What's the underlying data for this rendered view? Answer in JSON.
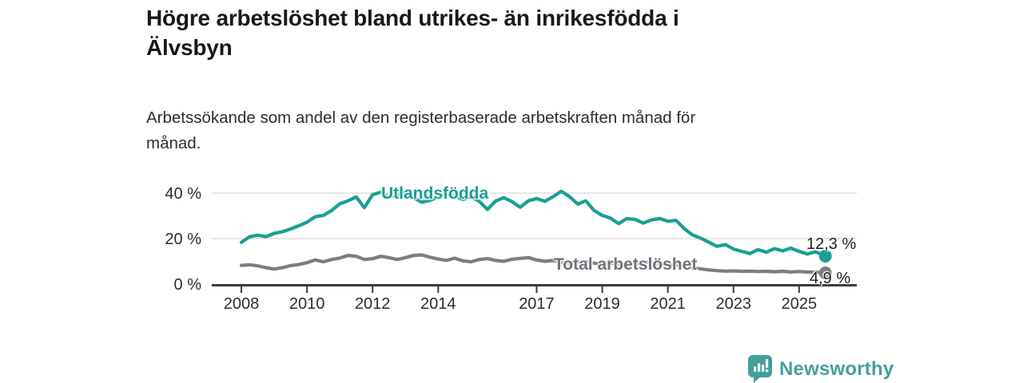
{
  "header": {
    "title": "Högre arbetslöshet bland utrikes- än inrikesfödda i\nÄlvsbyn",
    "subtitle": "Arbetssökande som andel av den registerbaserade arbetskraften månad för\nmånad."
  },
  "chart_data": {
    "type": "line",
    "title": "Högre arbetslöshet bland utrikes- än inrikesfödda i Älvsbyn",
    "subtitle": "Arbetssökande som andel av den registerbaserade arbetskraften månad för månad.",
    "unit": "%",
    "grid": "horizontal",
    "legend_position": "inline-labels",
    "xlim": [
      2008,
      2026
    ],
    "ylim": [
      0,
      44
    ],
    "yticks": [
      {
        "value": 0,
        "label": "0 %"
      },
      {
        "value": 20,
        "label": "20 %"
      },
      {
        "value": 40,
        "label": "40 %"
      }
    ],
    "xticks": [
      {
        "value": 2008,
        "label": "2008"
      },
      {
        "value": 2010,
        "label": "2010"
      },
      {
        "value": 2012,
        "label": "2012"
      },
      {
        "value": 2014,
        "label": "2014"
      },
      {
        "value": 2017,
        "label": "2017"
      },
      {
        "value": 2019,
        "label": "2019"
      },
      {
        "value": 2021,
        "label": "2021"
      },
      {
        "value": 2023,
        "label": "2023"
      },
      {
        "value": 2025,
        "label": "2025"
      }
    ],
    "series": [
      {
        "name": "Utlandsfödda",
        "color": "#18a093",
        "end_label": "12,3 %",
        "end_value": 12.3,
        "points": [
          [
            2008.0,
            18.3
          ],
          [
            2008.25,
            20.8
          ],
          [
            2008.5,
            21.5
          ],
          [
            2008.75,
            20.8
          ],
          [
            2009.0,
            22.3
          ],
          [
            2009.25,
            23.0
          ],
          [
            2009.5,
            24.2
          ],
          [
            2009.75,
            25.6
          ],
          [
            2010.0,
            27.2
          ],
          [
            2010.25,
            29.6
          ],
          [
            2010.5,
            30.2
          ],
          [
            2010.75,
            32.3
          ],
          [
            2011.0,
            35.3
          ],
          [
            2011.25,
            36.6
          ],
          [
            2011.5,
            38.3
          ],
          [
            2011.75,
            33.6
          ],
          [
            2012.0,
            39.3
          ],
          [
            2012.25,
            40.4
          ],
          [
            2012.5,
            38.2
          ],
          [
            2012.75,
            39.2
          ],
          [
            2013.0,
            40.3
          ],
          [
            2013.25,
            38.0
          ],
          [
            2013.5,
            36.0
          ],
          [
            2013.75,
            36.8
          ],
          [
            2014.0,
            38.2
          ],
          [
            2014.25,
            39.6
          ],
          [
            2014.5,
            38.6
          ],
          [
            2014.75,
            37.2
          ],
          [
            2015.0,
            38.3
          ],
          [
            2015.25,
            36.4
          ],
          [
            2015.5,
            32.8
          ],
          [
            2015.75,
            36.5
          ],
          [
            2016.0,
            38.0
          ],
          [
            2016.25,
            36.2
          ],
          [
            2016.5,
            33.8
          ],
          [
            2016.75,
            36.6
          ],
          [
            2017.0,
            37.6
          ],
          [
            2017.25,
            36.4
          ],
          [
            2017.5,
            38.4
          ],
          [
            2017.75,
            40.8
          ],
          [
            2018.0,
            38.5
          ],
          [
            2018.25,
            35.2
          ],
          [
            2018.5,
            36.6
          ],
          [
            2018.75,
            32.4
          ],
          [
            2019.0,
            30.2
          ],
          [
            2019.25,
            29.0
          ],
          [
            2019.5,
            26.6
          ],
          [
            2019.75,
            28.8
          ],
          [
            2020.0,
            28.4
          ],
          [
            2020.25,
            26.8
          ],
          [
            2020.5,
            28.2
          ],
          [
            2020.75,
            28.8
          ],
          [
            2021.0,
            27.6
          ],
          [
            2021.25,
            28.0
          ],
          [
            2021.5,
            24.4
          ],
          [
            2021.75,
            21.6
          ],
          [
            2022.0,
            20.2
          ],
          [
            2022.25,
            18.4
          ],
          [
            2022.5,
            16.6
          ],
          [
            2022.75,
            17.4
          ],
          [
            2023.0,
            15.4
          ],
          [
            2023.25,
            14.4
          ],
          [
            2023.5,
            13.4
          ],
          [
            2023.75,
            15.2
          ],
          [
            2024.0,
            14.0
          ],
          [
            2024.25,
            15.6
          ],
          [
            2024.5,
            14.6
          ],
          [
            2024.75,
            15.8
          ],
          [
            2025.0,
            14.4
          ],
          [
            2025.25,
            13.2
          ],
          [
            2025.5,
            14.2
          ],
          [
            2025.8,
            12.3
          ]
        ]
      },
      {
        "name": "Total arbetslöshet",
        "color": "#7c7c81",
        "end_label": "4,9 %",
        "end_value": 4.9,
        "points": [
          [
            2008.0,
            8.2
          ],
          [
            2008.25,
            8.5
          ],
          [
            2008.5,
            8.0
          ],
          [
            2008.75,
            7.2
          ],
          [
            2009.0,
            6.6
          ],
          [
            2009.25,
            7.2
          ],
          [
            2009.5,
            8.1
          ],
          [
            2009.75,
            8.6
          ],
          [
            2010.0,
            9.4
          ],
          [
            2010.25,
            10.6
          ],
          [
            2010.5,
            9.8
          ],
          [
            2010.75,
            10.8
          ],
          [
            2011.0,
            11.4
          ],
          [
            2011.25,
            12.6
          ],
          [
            2011.5,
            12.2
          ],
          [
            2011.75,
            10.8
          ],
          [
            2012.0,
            11.2
          ],
          [
            2012.25,
            12.2
          ],
          [
            2012.5,
            11.6
          ],
          [
            2012.75,
            10.8
          ],
          [
            2013.0,
            11.6
          ],
          [
            2013.25,
            12.6
          ],
          [
            2013.5,
            12.8
          ],
          [
            2013.75,
            11.8
          ],
          [
            2014.0,
            11.0
          ],
          [
            2014.25,
            10.4
          ],
          [
            2014.5,
            11.4
          ],
          [
            2014.75,
            10.2
          ],
          [
            2015.0,
            9.8
          ],
          [
            2015.25,
            10.8
          ],
          [
            2015.5,
            11.2
          ],
          [
            2015.75,
            10.4
          ],
          [
            2016.0,
            10.0
          ],
          [
            2016.25,
            10.9
          ],
          [
            2016.5,
            11.3
          ],
          [
            2016.75,
            11.6
          ],
          [
            2017.0,
            10.6
          ],
          [
            2017.25,
            10.0
          ],
          [
            2017.5,
            10.4
          ],
          [
            2017.75,
            9.6
          ],
          [
            2018.0,
            9.2
          ],
          [
            2018.25,
            9.7
          ],
          [
            2018.5,
            9.9
          ],
          [
            2018.75,
            9.2
          ],
          [
            2019.0,
            8.8
          ],
          [
            2019.25,
            9.1
          ],
          [
            2019.5,
            8.9
          ],
          [
            2019.75,
            8.6
          ],
          [
            2020.0,
            8.8
          ],
          [
            2020.25,
            9.6
          ],
          [
            2020.5,
            9.4
          ],
          [
            2020.75,
            8.9
          ],
          [
            2021.0,
            8.6
          ],
          [
            2021.25,
            8.3
          ],
          [
            2021.5,
            7.8
          ],
          [
            2021.75,
            7.2
          ],
          [
            2022.0,
            6.7
          ],
          [
            2022.25,
            6.2
          ],
          [
            2022.5,
            5.9
          ],
          [
            2022.75,
            5.7
          ],
          [
            2023.0,
            5.8
          ],
          [
            2023.25,
            5.6
          ],
          [
            2023.5,
            5.7
          ],
          [
            2023.75,
            5.5
          ],
          [
            2024.0,
            5.6
          ],
          [
            2024.25,
            5.4
          ],
          [
            2024.5,
            5.6
          ],
          [
            2024.75,
            5.3
          ],
          [
            2025.0,
            5.5
          ],
          [
            2025.25,
            5.3
          ],
          [
            2025.5,
            5.2
          ],
          [
            2025.8,
            4.9
          ]
        ]
      }
    ]
  },
  "footer": {
    "brand": "Newsworthy",
    "logo_icon": "bar-chart-speech-bubble-icon"
  },
  "colors": {
    "accent_teal": "#18a093",
    "line_gray": "#7c7c81",
    "logo_teal": "#43a09a",
    "gridline": "#d8d8d8",
    "axis": "#3b3b3b",
    "text_dark": "#191919"
  }
}
